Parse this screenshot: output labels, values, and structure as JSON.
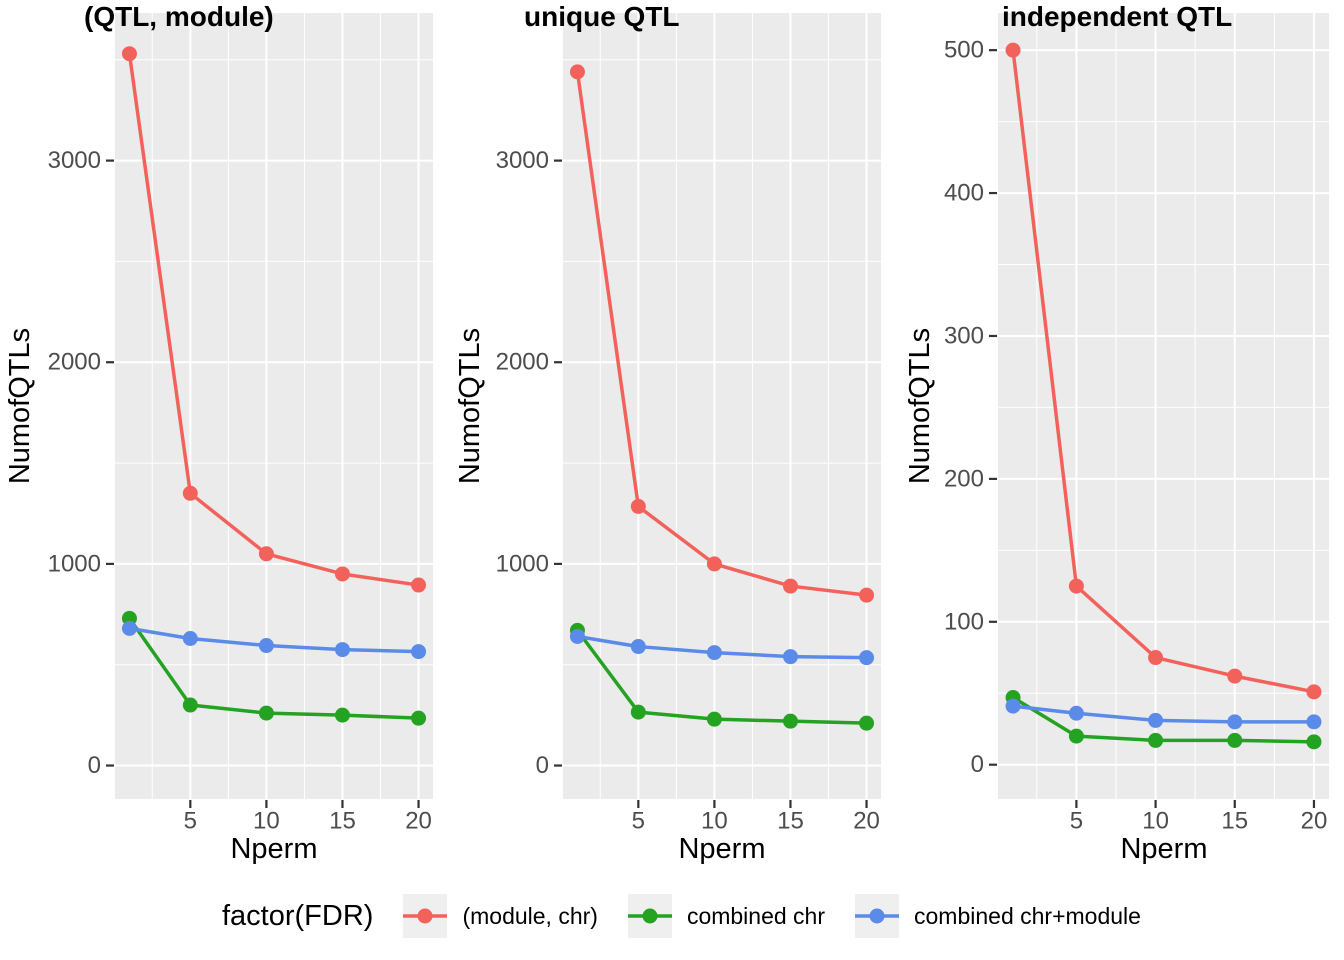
{
  "figure": {
    "colors": {
      "red": "#F2625B",
      "green": "#24A222",
      "blue": "#5B8BE8"
    },
    "legend": {
      "title": "factor(FDR)",
      "entries": [
        {
          "label": "(module, chr)",
          "color": "red"
        },
        {
          "label": "combined chr",
          "color": "green"
        },
        {
          "label": "combined chr+module",
          "color": "blue"
        }
      ]
    }
  },
  "chart_data": [
    {
      "type": "line",
      "title": "(QTL, module)",
      "xlabel": "Nperm",
      "ylabel": "NumofQTLs",
      "x": [
        1,
        5,
        10,
        15,
        20
      ],
      "xticks": [
        5,
        10,
        15,
        20
      ],
      "xlim": [
        0.05,
        20.95
      ],
      "yticks": [
        0,
        1000,
        2000,
        3000
      ],
      "ylim": [
        -166,
        3732
      ],
      "grid": {
        "major": true,
        "minor": true
      },
      "legend_position": "bottom",
      "series": [
        {
          "name": "(module, chr)",
          "color": "red",
          "values": [
            3530,
            1350,
            1050,
            950,
            895
          ]
        },
        {
          "name": "combined chr",
          "color": "green",
          "values": [
            730,
            300,
            260,
            250,
            235
          ]
        },
        {
          "name": "combined chr+module",
          "color": "blue",
          "values": [
            680,
            630,
            595,
            575,
            565
          ]
        }
      ]
    },
    {
      "type": "line",
      "title": "unique QTL",
      "xlabel": "Nperm",
      "ylabel": "NumofQTLs",
      "x": [
        1,
        5,
        10,
        15,
        20
      ],
      "xticks": [
        5,
        10,
        15,
        20
      ],
      "xlim": [
        0.05,
        20.95
      ],
      "yticks": [
        0,
        1000,
        2000,
        3000
      ],
      "ylim": [
        -166,
        3732
      ],
      "grid": {
        "major": true,
        "minor": true
      },
      "legend_position": "bottom",
      "series": [
        {
          "name": "(module, chr)",
          "color": "red",
          "values": [
            3440,
            1285,
            1000,
            890,
            845
          ]
        },
        {
          "name": "combined chr",
          "color": "green",
          "values": [
            670,
            265,
            230,
            220,
            210
          ]
        },
        {
          "name": "combined chr+module",
          "color": "blue",
          "values": [
            640,
            590,
            560,
            540,
            535
          ]
        }
      ]
    },
    {
      "type": "line",
      "title": "independent QTL",
      "xlabel": "Nperm",
      "ylabel": "NumofQTLs",
      "x": [
        1,
        5,
        10,
        15,
        20
      ],
      "xticks": [
        5,
        10,
        15,
        20
      ],
      "xlim": [
        0.05,
        20.95
      ],
      "yticks": [
        0,
        100,
        200,
        300,
        400,
        500
      ],
      "ylim": [
        -24,
        526
      ],
      "grid": {
        "major": true,
        "minor": true
      },
      "legend_position": "bottom",
      "series": [
        {
          "name": "(module, chr)",
          "color": "red",
          "values": [
            500,
            125,
            75,
            62,
            51
          ]
        },
        {
          "name": "combined chr",
          "color": "green",
          "values": [
            47,
            20,
            17,
            17,
            16
          ]
        },
        {
          "name": "combined chr+module",
          "color": "blue",
          "values": [
            41,
            36,
            31,
            30,
            30
          ]
        }
      ]
    }
  ]
}
